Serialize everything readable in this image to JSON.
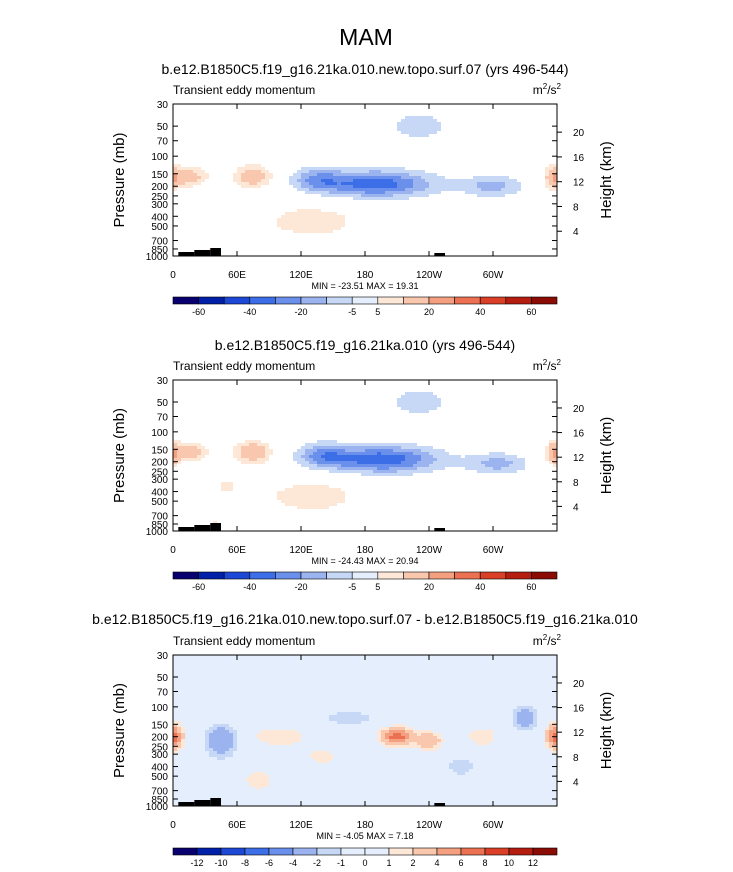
{
  "figure_title": "MAM",
  "colors": {
    "palette": [
      "#08006e",
      "#0020a8",
      "#1d48d6",
      "#3c6ee8",
      "#6a90ec",
      "#9bb4f0",
      "#c6d8f6",
      "#e4eefc",
      "#fde8d8",
      "#f9c7ad",
      "#f4a080",
      "#ec7152",
      "#d94027",
      "#b51d10",
      "#8b0c05"
    ],
    "topography": "#000000"
  },
  "chart_data": [
    {
      "type": "heatmap",
      "title": "b.e12.B1850C5.f19_g16.21ka.010.new.topo.surf.07 (yrs 496-544)",
      "left_label": "Transient eddy momentum",
      "units_label": "m²/s²",
      "units_base": "m",
      "units_exp1": "2",
      "units_mid": "/s",
      "units_exp2": "2",
      "xlabel": "",
      "ylabel": "Pressure (mb)",
      "y2label": "Height (km)",
      "x_ticks": [
        "0",
        "60E",
        "120E",
        "180",
        "120W",
        "60W"
      ],
      "x_tick_lon": [
        0,
        60,
        120,
        180,
        240,
        300
      ],
      "xlim": [
        0,
        360
      ],
      "y_ticks": [
        "30",
        "50",
        "70",
        "100",
        "150",
        "200",
        "250",
        "300",
        "400",
        "500",
        "700",
        "850",
        "1000"
      ],
      "y_tick_p": [
        30,
        50,
        70,
        100,
        150,
        200,
        250,
        300,
        400,
        500,
        700,
        850,
        1000
      ],
      "ylim_mb": [
        1000,
        30
      ],
      "height_ticks": [
        "4",
        "8",
        "12",
        "16",
        "20"
      ],
      "height_km": [
        4,
        8,
        12,
        16,
        20
      ],
      "stats": "MIN = -23.51  MAX = 19.31",
      "min": -23.51,
      "max": 19.31,
      "colorbar_labels": [
        "-60",
        "-40",
        "-20",
        "-5",
        "5",
        "20",
        "40",
        "60"
      ],
      "colorbar_levels": [
        -70,
        -60,
        -50,
        -40,
        -30,
        -20,
        -10,
        -5,
        5,
        10,
        20,
        30,
        40,
        50,
        60,
        70
      ],
      "field_levels": [
        -20,
        -15,
        -10,
        -5,
        5,
        10,
        20
      ],
      "features": [
        {
          "lon": 190,
          "p": 190,
          "value": -23.5,
          "sigma_lon": 38,
          "sigma_lp": 0.22
        },
        {
          "lon": 135,
          "p": 170,
          "value": -12,
          "sigma_lon": 16,
          "sigma_lp": 0.2
        },
        {
          "lon": 300,
          "p": 200,
          "value": -12,
          "sigma_lon": 20,
          "sigma_lp": 0.18
        },
        {
          "lon": 75,
          "p": 160,
          "value": 16,
          "sigma_lon": 12,
          "sigma_lp": 0.18
        },
        {
          "lon": 15,
          "p": 160,
          "value": 14,
          "sigma_lon": 12,
          "sigma_lp": 0.16
        },
        {
          "lon": 358,
          "p": 165,
          "value": 19,
          "sigma_lon": 6,
          "sigma_lp": 0.18
        },
        {
          "lon": 40,
          "p": 900,
          "value": 9,
          "sigma_lon": 6,
          "sigma_lp": 0.1
        },
        {
          "lon": 230,
          "p": 50,
          "value": -6,
          "sigma_lon": 35,
          "sigma_lp": 0.4
        },
        {
          "lon": 130,
          "p": 450,
          "value": 7,
          "sigma_lon": 40,
          "sigma_lp": 0.35
        }
      ],
      "topography_lon": [
        [
          5,
          20
        ],
        [
          20,
          35
        ],
        [
          35,
          45
        ],
        [
          245,
          255
        ]
      ]
    },
    {
      "type": "heatmap",
      "title": "b.e12.B1850C5.f19_g16.21ka.010 (yrs 496-544)",
      "left_label": "Transient eddy momentum",
      "units_label": "m²/s²",
      "units_base": "m",
      "units_exp1": "2",
      "units_mid": "/s",
      "units_exp2": "2",
      "xlabel": "",
      "ylabel": "Pressure (mb)",
      "y2label": "Height (km)",
      "x_ticks": [
        "0",
        "60E",
        "120E",
        "180",
        "120W",
        "60W"
      ],
      "x_tick_lon": [
        0,
        60,
        120,
        180,
        240,
        300
      ],
      "xlim": [
        0,
        360
      ],
      "y_ticks": [
        "30",
        "50",
        "70",
        "100",
        "150",
        "200",
        "250",
        "300",
        "400",
        "500",
        "700",
        "850",
        "1000"
      ],
      "y_tick_p": [
        30,
        50,
        70,
        100,
        150,
        200,
        250,
        300,
        400,
        500,
        700,
        850,
        1000
      ],
      "ylim_mb": [
        1000,
        30
      ],
      "height_ticks": [
        "4",
        "8",
        "12",
        "16",
        "20"
      ],
      "height_km": [
        4,
        8,
        12,
        16,
        20
      ],
      "stats": "MIN = -24.43  MAX = 20.94",
      "min": -24.43,
      "max": 20.94,
      "colorbar_labels": [
        "-60",
        "-40",
        "-20",
        "-5",
        "5",
        "20",
        "40",
        "60"
      ],
      "colorbar_levels": [
        -70,
        -60,
        -50,
        -40,
        -30,
        -20,
        -10,
        -5,
        5,
        10,
        20,
        30,
        40,
        50,
        60,
        70
      ],
      "field_levels": [
        -20,
        -15,
        -10,
        -5,
        5,
        10,
        20
      ],
      "features": [
        {
          "lon": 195,
          "p": 190,
          "value": -24.4,
          "sigma_lon": 38,
          "sigma_lp": 0.22
        },
        {
          "lon": 140,
          "p": 170,
          "value": -13,
          "sigma_lon": 16,
          "sigma_lp": 0.2
        },
        {
          "lon": 305,
          "p": 210,
          "value": -12,
          "sigma_lon": 20,
          "sigma_lp": 0.18
        },
        {
          "lon": 75,
          "p": 160,
          "value": 17,
          "sigma_lon": 12,
          "sigma_lp": 0.18
        },
        {
          "lon": 15,
          "p": 160,
          "value": 14,
          "sigma_lon": 12,
          "sigma_lp": 0.16
        },
        {
          "lon": 358,
          "p": 165,
          "value": 20.9,
          "sigma_lon": 5,
          "sigma_lp": 0.18
        },
        {
          "lon": 50,
          "p": 350,
          "value": 8,
          "sigma_lon": 6,
          "sigma_lp": 0.1
        },
        {
          "lon": 40,
          "p": 900,
          "value": 8,
          "sigma_lon": 6,
          "sigma_lp": 0.1
        },
        {
          "lon": 230,
          "p": 50,
          "value": -6,
          "sigma_lon": 35,
          "sigma_lp": 0.4
        },
        {
          "lon": 130,
          "p": 450,
          "value": 7,
          "sigma_lon": 40,
          "sigma_lp": 0.35
        }
      ],
      "topography_lon": [
        [
          5,
          20
        ],
        [
          20,
          35
        ],
        [
          35,
          45
        ],
        [
          245,
          255
        ]
      ]
    },
    {
      "type": "heatmap",
      "title": "b.e12.B1850C5.f19_g16.21ka.010.new.topo.surf.07 - b.e12.B1850C5.f19_g16.21ka.010",
      "left_label": "Transient eddy momentum",
      "units_label": "m²/s²",
      "units_base": "m",
      "units_exp1": "2",
      "units_mid": "/s",
      "units_exp2": "2",
      "xlabel": "",
      "ylabel": "Pressure (mb)",
      "y2label": "Height (km)",
      "x_ticks": [
        "0",
        "60E",
        "120E",
        "180",
        "120W",
        "60W"
      ],
      "x_tick_lon": [
        0,
        60,
        120,
        180,
        240,
        300
      ],
      "xlim": [
        0,
        360
      ],
      "y_ticks": [
        "30",
        "50",
        "70",
        "100",
        "150",
        "200",
        "250",
        "300",
        "400",
        "500",
        "700",
        "850",
        "1000"
      ],
      "y_tick_p": [
        30,
        50,
        70,
        100,
        150,
        200,
        250,
        300,
        400,
        500,
        700,
        850,
        1000
      ],
      "ylim_mb": [
        1000,
        30
      ],
      "height_ticks": [
        "4",
        "8",
        "12",
        "16",
        "20"
      ],
      "height_km": [
        4,
        8,
        12,
        16,
        20
      ],
      "stats": "MIN = -4.05  MAX =  7.18",
      "min": -4.05,
      "max": 7.18,
      "colorbar_labels": [
        "-12",
        "-10",
        "-8",
        "-6",
        "-4",
        "-2",
        "-1",
        "0",
        "1",
        "2",
        "4",
        "6",
        "8",
        "10",
        "12"
      ],
      "colorbar_levels": [
        -14,
        -12,
        -10,
        -8,
        -6,
        -4,
        -2,
        -1,
        0,
        1,
        2,
        4,
        6,
        8,
        10,
        12,
        14
      ],
      "field_levels": [
        -4,
        -2,
        -1,
        0,
        1,
        2,
        4,
        6
      ],
      "features": [
        {
          "lon": 210,
          "p": 200,
          "value": 7.2,
          "sigma_lon": 10,
          "sigma_lp": 0.14
        },
        {
          "lon": 240,
          "p": 220,
          "value": 4,
          "sigma_lon": 8,
          "sigma_lp": 0.14
        },
        {
          "lon": 358,
          "p": 200,
          "value": 5,
          "sigma_lon": 6,
          "sigma_lp": 0.2
        },
        {
          "lon": 3,
          "p": 200,
          "value": 3,
          "sigma_lon": 5,
          "sigma_lp": 0.18
        },
        {
          "lon": 45,
          "p": 220,
          "value": -4,
          "sigma_lon": 10,
          "sigma_lp": 0.25
        },
        {
          "lon": 330,
          "p": 130,
          "value": -3.5,
          "sigma_lon": 8,
          "sigma_lp": 0.18
        },
        {
          "lon": 100,
          "p": 200,
          "value": 2,
          "sigma_lon": 18,
          "sigma_lp": 0.16
        },
        {
          "lon": 140,
          "p": 320,
          "value": 1.5,
          "sigma_lon": 12,
          "sigma_lp": 0.15
        },
        {
          "lon": 165,
          "p": 130,
          "value": -1.5,
          "sigma_lon": 20,
          "sigma_lp": 0.15
        },
        {
          "lon": 290,
          "p": 200,
          "value": 2,
          "sigma_lon": 10,
          "sigma_lp": 0.16
        },
        {
          "lon": 270,
          "p": 400,
          "value": -1.5,
          "sigma_lon": 12,
          "sigma_lp": 0.2
        },
        {
          "lon": 80,
          "p": 550,
          "value": 1.5,
          "sigma_lon": 12,
          "sigma_lp": 0.22
        }
      ],
      "topography_lon": [
        [
          5,
          20
        ],
        [
          20,
          35
        ],
        [
          35,
          45
        ],
        [
          245,
          255
        ]
      ]
    }
  ]
}
